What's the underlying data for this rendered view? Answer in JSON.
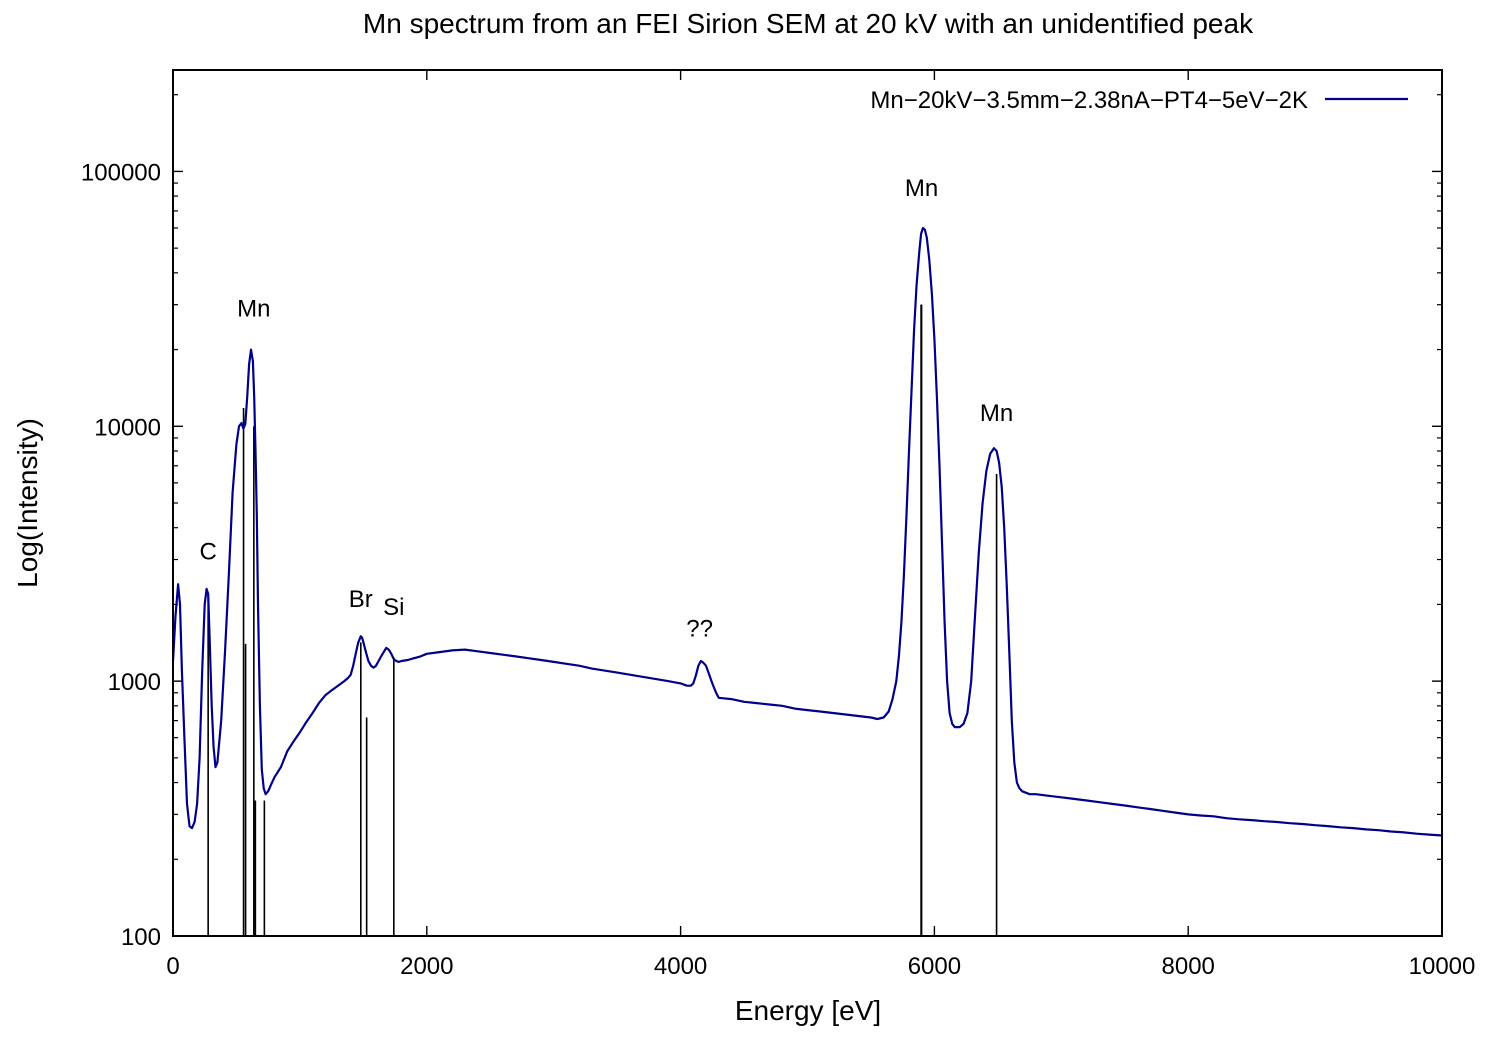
{
  "chart_data": {
    "type": "line",
    "title": "Mn spectrum from an FEI Sirion SEM at 20 kV with an unidentified peak",
    "xlabel": "Energy [eV]",
    "ylabel": "Log(Intensity)",
    "xlim": [
      0,
      10000
    ],
    "ylim": [
      100,
      250000
    ],
    "yscale": "log",
    "grid": false,
    "legend_position": "top-right",
    "x_ticks": [
      0,
      2000,
      4000,
      6000,
      8000,
      10000
    ],
    "x_tick_labels": [
      "0",
      "2000",
      "4000",
      "6000",
      "8000",
      "10000"
    ],
    "y_ticks": [
      100,
      1000,
      10000,
      100000
    ],
    "y_tick_labels": [
      "100",
      "1000",
      "10000",
      "100000"
    ],
    "series": [
      {
        "name": "Mn−20kV−3.5mm−2.38nA−PT4−5eV−2K",
        "color": "#00008b",
        "x": [
          0,
          20,
          40,
          55,
          70,
          90,
          110,
          130,
          150,
          170,
          190,
          210,
          230,
          250,
          265,
          277,
          290,
          305,
          320,
          335,
          350,
          380,
          410,
          440,
          470,
          500,
          520,
          540,
          555,
          570,
          585,
          600,
          615,
          630,
          640,
          650,
          660,
          670,
          685,
          700,
          715,
          730,
          750,
          770,
          800,
          850,
          900,
          950,
          1000,
          1050,
          1100,
          1150,
          1200,
          1250,
          1300,
          1350,
          1380,
          1400,
          1420,
          1440,
          1460,
          1480,
          1490,
          1500,
          1520,
          1540,
          1560,
          1580,
          1600,
          1620,
          1640,
          1660,
          1680,
          1700,
          1720,
          1740,
          1760,
          1780,
          1800,
          1850,
          1900,
          1950,
          2000,
          2100,
          2200,
          2300,
          2400,
          2500,
          2600,
          2700,
          2800,
          2900,
          3000,
          3100,
          3200,
          3300,
          3400,
          3500,
          3600,
          3700,
          3800,
          3900,
          4000,
          4050,
          4080,
          4100,
          4120,
          4140,
          4160,
          4180,
          4200,
          4220,
          4250,
          4280,
          4300,
          4400,
          4500,
          4600,
          4700,
          4800,
          4900,
          5000,
          5100,
          5200,
          5300,
          5400,
          5500,
          5550,
          5600,
          5640,
          5670,
          5700,
          5720,
          5740,
          5760,
          5780,
          5800,
          5820,
          5840,
          5860,
          5880,
          5895,
          5910,
          5925,
          5940,
          5960,
          5980,
          6000,
          6020,
          6040,
          6060,
          6080,
          6100,
          6120,
          6140,
          6160,
          6180,
          6200,
          6230,
          6260,
          6290,
          6320,
          6350,
          6380,
          6410,
          6440,
          6470,
          6490,
          6510,
          6530,
          6550,
          6570,
          6590,
          6610,
          6630,
          6650,
          6670,
          6690,
          6720,
          6750,
          6800,
          6900,
          7000,
          7100,
          7200,
          7300,
          7400,
          7500,
          7600,
          7700,
          7800,
          7900,
          8000,
          8100,
          8200,
          8300,
          8400,
          8500,
          8600,
          8700,
          8800,
          8900,
          9000,
          9100,
          9200,
          9300,
          9400,
          9500,
          9600,
          9700,
          9800,
          9900,
          10000
        ],
        "y": [
          1200,
          1800,
          2400,
          2000,
          1100,
          600,
          330,
          270,
          265,
          280,
          330,
          500,
          1100,
          2000,
          2300,
          2200,
          1400,
          800,
          550,
          460,
          480,
          700,
          1300,
          2600,
          5500,
          8500,
          10000,
          10300,
          9800,
          10200,
          13000,
          17500,
          20000,
          18000,
          13000,
          8000,
          4500,
          2000,
          800,
          450,
          380,
          360,
          370,
          390,
          420,
          460,
          530,
          580,
          630,
          690,
          750,
          820,
          880,
          920,
          960,
          1000,
          1030,
          1060,
          1150,
          1280,
          1420,
          1500,
          1480,
          1420,
          1300,
          1200,
          1150,
          1130,
          1150,
          1200,
          1250,
          1300,
          1350,
          1330,
          1280,
          1220,
          1200,
          1190,
          1200,
          1210,
          1230,
          1250,
          1280,
          1300,
          1320,
          1330,
          1310,
          1290,
          1270,
          1250,
          1230,
          1210,
          1190,
          1170,
          1150,
          1120,
          1100,
          1080,
          1060,
          1040,
          1020,
          1000,
          980,
          960,
          960,
          980,
          1050,
          1150,
          1200,
          1180,
          1150,
          1080,
          980,
          900,
          860,
          850,
          830,
          820,
          810,
          800,
          780,
          770,
          760,
          750,
          740,
          730,
          720,
          710,
          720,
          760,
          850,
          1000,
          1250,
          1700,
          2600,
          4500,
          8000,
          14000,
          24000,
          36000,
          48000,
          57000,
          60000,
          59000,
          55000,
          45000,
          33000,
          22000,
          13000,
          7000,
          3500,
          1700,
          1000,
          750,
          680,
          660,
          660,
          660,
          680,
          750,
          1000,
          1800,
          3200,
          5000,
          6700,
          7800,
          8200,
          8000,
          7200,
          5800,
          4000,
          2400,
          1300,
          700,
          480,
          400,
          380,
          370,
          365,
          360,
          360,
          355,
          350,
          345,
          340,
          335,
          330,
          325,
          320,
          315,
          310,
          305,
          300,
          297,
          295,
          290,
          287,
          285,
          282,
          280,
          277,
          275,
          272,
          270,
          267,
          265,
          262,
          260,
          257,
          255,
          252,
          250,
          248
        ]
      }
    ],
    "reference_lines": [
      {
        "x": 277,
        "y": 2200
      },
      {
        "x": 556,
        "y": 11800
      },
      {
        "x": 572,
        "y": 1400
      },
      {
        "x": 637,
        "y": 10000
      },
      {
        "x": 649,
        "y": 340
      },
      {
        "x": 720,
        "y": 340
      },
      {
        "x": 1480,
        "y": 1420
      },
      {
        "x": 1526,
        "y": 720
      },
      {
        "x": 1740,
        "y": 1240
      },
      {
        "x": 5895,
        "y": 30000
      },
      {
        "x": 5899,
        "y": 30000
      },
      {
        "x": 6490,
        "y": 6500
      }
    ],
    "annotations": [
      {
        "text": "C",
        "x": 277,
        "y": 3000
      },
      {
        "text": "Mn",
        "x": 637,
        "y": 27000
      },
      {
        "text": "Br",
        "x": 1480,
        "y": 1950
      },
      {
        "text": "Si",
        "x": 1740,
        "y": 1820
      },
      {
        "text": "??",
        "x": 4150,
        "y": 1500
      },
      {
        "text": "Mn",
        "x": 5899,
        "y": 80000
      },
      {
        "text": "Mn",
        "x": 6490,
        "y": 10500
      }
    ]
  }
}
